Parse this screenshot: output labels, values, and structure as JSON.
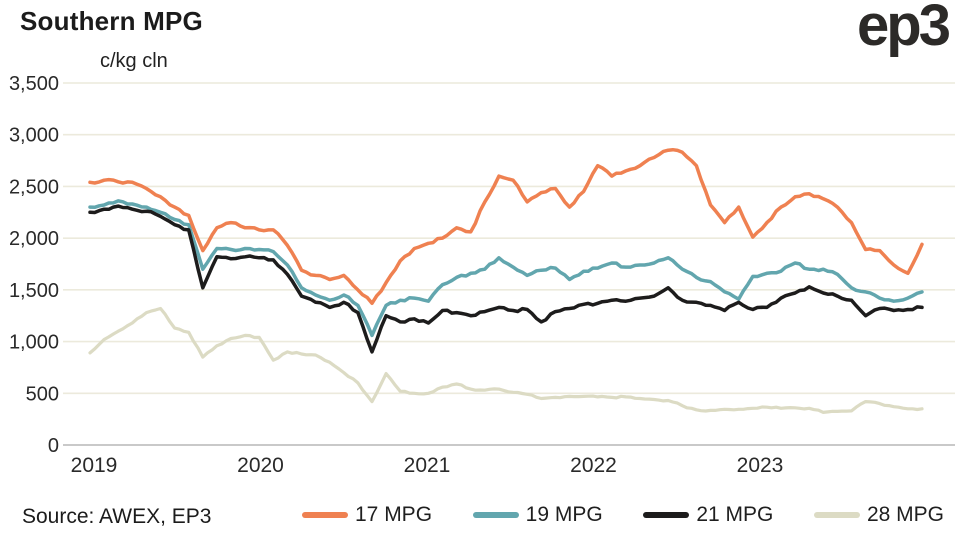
{
  "header": {
    "title": "Southern MPG",
    "unit_label": "c/kg cln",
    "logo": "ep3"
  },
  "footer": {
    "source": "Source: AWEX, EP3"
  },
  "colors": {
    "background": "#FFFFFF",
    "gridline": "#ECEADC",
    "axis_line": "#C9C9C9",
    "text": "#1F1F1F"
  },
  "chart_data": {
    "type": "line",
    "title": "Southern MPG",
    "ylabel": "c/kg cln",
    "ylim": [
      0,
      3500
    ],
    "y_ticks": [
      0,
      500,
      1000,
      1500,
      2000,
      2500,
      3000,
      3500
    ],
    "x_tick_labels": [
      "2019",
      "2020",
      "2021",
      "2022",
      "2023"
    ],
    "x_start": "2019-01",
    "x_end": "2023-12",
    "frequency": "monthly",
    "grid": "horizontal",
    "legend_position": "bottom",
    "series": [
      {
        "name": "17 MPG",
        "color": "#EF8151",
        "values": [
          2540,
          2560,
          2545,
          2540,
          2480,
          2400,
          2300,
          2220,
          1880,
          2100,
          2150,
          2100,
          2080,
          2080,
          1930,
          1690,
          1640,
          1600,
          1640,
          1500,
          1370,
          1570,
          1780,
          1900,
          1950,
          2000,
          2100,
          2060,
          2350,
          2600,
          2560,
          2350,
          2440,
          2480,
          2300,
          2450,
          2700,
          2600,
          2650,
          2700,
          2780,
          2850,
          2830,
          2700,
          2320,
          2150,
          2300,
          2010,
          2150,
          2300,
          2400,
          2430,
          2380,
          2300,
          2150,
          1890,
          1880,
          1740,
          1660,
          1940
        ]
      },
      {
        "name": "19 MPG",
        "color": "#62A6AE",
        "values": [
          2300,
          2320,
          2360,
          2330,
          2300,
          2250,
          2180,
          2130,
          1700,
          1900,
          1890,
          1900,
          1890,
          1870,
          1740,
          1520,
          1450,
          1400,
          1450,
          1350,
          1060,
          1350,
          1400,
          1420,
          1390,
          1550,
          1620,
          1660,
          1700,
          1810,
          1720,
          1640,
          1690,
          1710,
          1600,
          1680,
          1710,
          1760,
          1720,
          1740,
          1760,
          1810,
          1700,
          1620,
          1580,
          1480,
          1410,
          1630,
          1660,
          1680,
          1760,
          1700,
          1700,
          1650,
          1520,
          1480,
          1420,
          1390,
          1420,
          1480
        ]
      },
      {
        "name": "21 MPG",
        "color": "#1D1C1C",
        "values": [
          2250,
          2280,
          2310,
          2280,
          2260,
          2210,
          2130,
          2080,
          1520,
          1820,
          1800,
          1820,
          1810,
          1790,
          1650,
          1440,
          1380,
          1330,
          1380,
          1280,
          900,
          1250,
          1190,
          1220,
          1180,
          1300,
          1280,
          1250,
          1290,
          1330,
          1300,
          1310,
          1190,
          1290,
          1320,
          1360,
          1370,
          1400,
          1390,
          1420,
          1440,
          1520,
          1400,
          1380,
          1350,
          1300,
          1380,
          1310,
          1330,
          1420,
          1470,
          1530,
          1470,
          1440,
          1400,
          1250,
          1320,
          1300,
          1310,
          1330
        ]
      },
      {
        "name": "28 MPG",
        "color": "#DCDBC4",
        "values": [
          890,
          1020,
          1100,
          1180,
          1280,
          1320,
          1130,
          1090,
          850,
          960,
          1030,
          1060,
          1040,
          820,
          900,
          880,
          870,
          800,
          700,
          600,
          420,
          690,
          520,
          500,
          500,
          560,
          590,
          540,
          530,
          540,
          510,
          490,
          450,
          460,
          470,
          470,
          465,
          460,
          465,
          450,
          440,
          430,
          380,
          340,
          335,
          345,
          345,
          355,
          365,
          355,
          360,
          355,
          315,
          325,
          330,
          420,
          400,
          370,
          350,
          350
        ]
      }
    ]
  }
}
